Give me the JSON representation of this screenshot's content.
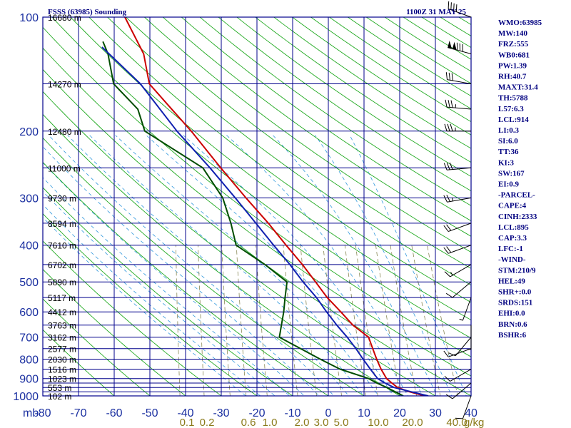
{
  "header": {
    "title": "FSSS (63985) Sounding",
    "datetime": "1100Z 31 MAY 25"
  },
  "chart_data": {
    "type": "line",
    "title": "FSSS (63985) Sounding",
    "valid_time": "1100Z 31 MAY 25",
    "pressure_axis": {
      "unit": "mb",
      "scale": "log",
      "range": [
        1000,
        100
      ],
      "ticks": [
        "100",
        "200",
        "300",
        "400",
        "500",
        "600",
        "700",
        "800",
        "900",
        "1000"
      ],
      "minor_levels": [
        150,
        250,
        350,
        450,
        550,
        650,
        750,
        850,
        925,
        950,
        975
      ]
    },
    "temperature_axis": {
      "unit": "°C",
      "range": [
        -80,
        40
      ],
      "ticks": [
        "-80",
        "-70",
        "-60",
        "-50",
        "-40",
        "-30",
        "-20",
        "-10",
        "0",
        "10",
        "20",
        "30",
        "40"
      ]
    },
    "height_labels": [
      {
        "p": 100,
        "text": "16680 m"
      },
      {
        "p": 150,
        "text": "14270 m"
      },
      {
        "p": 200,
        "text": "12480 m"
      },
      {
        "p": 250,
        "text": "11000 m"
      },
      {
        "p": 300,
        "text": "9730 m"
      },
      {
        "p": 350,
        "text": "8594 m"
      },
      {
        "p": 400,
        "text": "7610 m"
      },
      {
        "p": 450,
        "text": "6702 m"
      },
      {
        "p": 500,
        "text": "5890 m"
      },
      {
        "p": 550,
        "text": "5117 m"
      },
      {
        "p": 600,
        "text": "4412 m"
      },
      {
        "p": 650,
        "text": "3763 m"
      },
      {
        "p": 700,
        "text": "3162 m"
      },
      {
        "p": 750,
        "text": "2577 m"
      },
      {
        "p": 800,
        "text": "2030 m"
      },
      {
        "p": 850,
        "text": "1516 m"
      },
      {
        "p": 900,
        "text": "1023 m"
      },
      {
        "p": 950,
        "text": "553 m"
      },
      {
        "p": 1000,
        "text": "102 m"
      }
    ],
    "mixing_ratio_labels": [
      "0.1",
      "0.2",
      "0.6",
      "1.0",
      "2.0",
      "3.0",
      "5.0",
      "10.0",
      "20.0",
      "40.0"
    ],
    "mixing_ratio_unit": "g/kg",
    "series": [
      {
        "name": "Temperature",
        "color": "#cc0000",
        "points": [
          {
            "p": 1000,
            "t": 27.0
          },
          {
            "p": 975,
            "t": 22.5
          },
          {
            "p": 950,
            "t": 19.0
          },
          {
            "p": 925,
            "t": 17.2
          },
          {
            "p": 900,
            "t": 15.5
          },
          {
            "p": 850,
            "t": 13.5
          },
          {
            "p": 800,
            "t": 11.8
          },
          {
            "p": 750,
            "t": 10.2
          },
          {
            "p": 700,
            "t": 8.5
          },
          {
            "p": 650,
            "t": 3.5
          },
          {
            "p": 600,
            "t": -0.5
          },
          {
            "p": 550,
            "t": -5.0
          },
          {
            "p": 500,
            "t": -9.0
          },
          {
            "p": 450,
            "t": -13.5
          },
          {
            "p": 400,
            "t": -19.0
          },
          {
            "p": 350,
            "t": -25.0
          },
          {
            "p": 300,
            "t": -32.5
          },
          {
            "p": 250,
            "t": -41.0
          },
          {
            "p": 200,
            "t": -51.0
          },
          {
            "p": 175,
            "t": -57.5
          },
          {
            "p": 150,
            "t": -65.0
          },
          {
            "p": 125,
            "t": -68.0
          },
          {
            "p": 100,
            "t": -75.0
          }
        ]
      },
      {
        "name": "Dewpoint",
        "color": "#004d00",
        "points": [
          {
            "p": 1000,
            "t": 21.0
          },
          {
            "p": 975,
            "t": 18.5
          },
          {
            "p": 950,
            "t": 16.0
          },
          {
            "p": 925,
            "t": 13.0
          },
          {
            "p": 900,
            "t": 10.5
          },
          {
            "p": 850,
            "t": 2.0
          },
          {
            "p": 800,
            "t": -4.0
          },
          {
            "p": 750,
            "t": -10.0
          },
          {
            "p": 700,
            "t": -16.5
          },
          {
            "p": 650,
            "t": -16.5
          },
          {
            "p": 600,
            "t": -16.5
          },
          {
            "p": 550,
            "t": -16.8
          },
          {
            "p": 500,
            "t": -17.0
          },
          {
            "p": 450,
            "t": -24.0
          },
          {
            "p": 400,
            "t": -33.0
          },
          {
            "p": 350,
            "t": -35.5
          },
          {
            "p": 300,
            "t": -39.0
          },
          {
            "p": 250,
            "t": -46.0
          },
          {
            "p": 200,
            "t": -64.0
          },
          {
            "p": 175,
            "t": -67.0
          },
          {
            "p": 150,
            "t": -75.0
          },
          {
            "p": 125,
            "t": -78.0
          },
          {
            "p": 116,
            "t": -80.0
          }
        ]
      },
      {
        "name": "Parcel",
        "color": "#1020b0",
        "points": [
          {
            "p": 1000,
            "t": 28.0
          },
          {
            "p": 975,
            "t": 23.0
          },
          {
            "p": 950,
            "t": 18.0
          },
          {
            "p": 925,
            "t": 15.3
          },
          {
            "p": 900,
            "t": 13.0
          },
          {
            "p": 850,
            "t": 10.5
          },
          {
            "p": 800,
            "t": 8.0
          },
          {
            "p": 750,
            "t": 5.5
          },
          {
            "p": 700,
            "t": 2.5
          },
          {
            "p": 650,
            "t": -1.0
          },
          {
            "p": 600,
            "t": -4.5
          },
          {
            "p": 550,
            "t": -8.0
          },
          {
            "p": 500,
            "t": -12.5
          },
          {
            "p": 450,
            "t": -17.0
          },
          {
            "p": 400,
            "t": -22.5
          },
          {
            "p": 350,
            "t": -28.5
          },
          {
            "p": 300,
            "t": -35.5
          },
          {
            "p": 250,
            "t": -44.0
          },
          {
            "p": 200,
            "t": -55.0
          },
          {
            "p": 150,
            "t": -67.5
          },
          {
            "p": 120,
            "t": -80.0
          }
        ]
      }
    ],
    "wind_barbs": [
      {
        "p": 100,
        "dir": 290,
        "spd": 40
      },
      {
        "p": 125,
        "dir": 285,
        "spd": 130
      },
      {
        "p": 150,
        "dir": 280,
        "spd": 30
      },
      {
        "p": 175,
        "dir": 275,
        "spd": 35
      },
      {
        "p": 200,
        "dir": 270,
        "spd": 35
      },
      {
        "p": 250,
        "dir": 265,
        "spd": 30
      },
      {
        "p": 300,
        "dir": 260,
        "spd": 25
      },
      {
        "p": 350,
        "dir": 250,
        "spd": 20
      },
      {
        "p": 400,
        "dir": 250,
        "spd": 20
      },
      {
        "p": 450,
        "dir": 240,
        "spd": 15
      },
      {
        "p": 500,
        "dir": 230,
        "spd": 10
      },
      {
        "p": 550,
        "dir": 200,
        "spd": 5
      },
      {
        "p": 650,
        "dir": 180,
        "spd": 5
      },
      {
        "p": 700,
        "dir": 220,
        "spd": 10
      },
      {
        "p": 750,
        "dir": 250,
        "spd": 10
      },
      {
        "p": 850,
        "dir": 240,
        "spd": 10
      },
      {
        "p": 925,
        "dir": 230,
        "spd": 10
      },
      {
        "p": 1000,
        "dir": 200,
        "spd": 10
      }
    ]
  },
  "indices": [
    "WMO:63985",
    "MW:140",
    "FRZ:555",
    "WB0:681",
    "PW:1.39",
    "RH:40.7",
    "MAXT:31.4",
    "TH:5788",
    "L57:6.3",
    "LCL:914",
    "LI:0.3",
    "SI:6.0",
    "TT:36",
    "KI:3",
    "SW:167",
    "EI:0.9",
    "-PARCEL-",
    "CAPE:4",
    "CINH:2333",
    "LCL:895",
    "CAP:3.3",
    "LFC:-1",
    "-WIND-",
    "STM:210/9",
    "HEL:49",
    "SHR+:0.0",
    "SRDS:151",
    "EHI:0.0",
    "BRN:0.6",
    "BSHR:6"
  ],
  "colors": {
    "grid": "#00008b",
    "dry_adiabat": "#22aa22",
    "isotherm_skew": "#22aa22",
    "moist_adiabat": "#3399dd",
    "mixing_ratio": "#888855",
    "temperature": "#cc0000",
    "dewpoint": "#004d00",
    "parcel": "#1020b0"
  }
}
